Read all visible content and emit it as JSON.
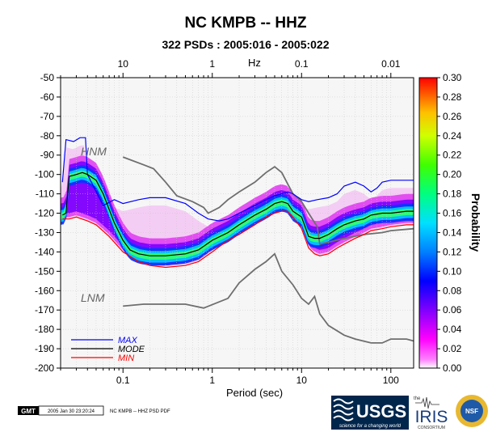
{
  "chart_data": {
    "type": "heatmap",
    "title": "NC KMPB -- HHZ",
    "subtitle": "322 PSDs : 2005:016 - 2005:022",
    "xlabel": "Period (sec)",
    "top_axis_unit": "Hz",
    "colorbar_label": "Probability",
    "x_scale": "log",
    "xlim": [
      0.02,
      180
    ],
    "ylim": [
      -200,
      -50
    ],
    "x_ticks": [
      {
        "v": 0.1,
        "label": "0.1"
      },
      {
        "v": 1,
        "label": "1"
      },
      {
        "v": 10,
        "label": "10"
      },
      {
        "v": 100,
        "label": "100"
      }
    ],
    "top_ticks": [
      {
        "v": 0.1,
        "label": "10"
      },
      {
        "v": 1,
        "label": "1"
      },
      {
        "v": 10,
        "label": "0.1"
      },
      {
        "v": 100,
        "label": "0.01"
      }
    ],
    "y_ticks": [
      -50,
      -60,
      -70,
      -80,
      -90,
      -100,
      -110,
      -120,
      -130,
      -140,
      -150,
      -160,
      -170,
      -180,
      -190,
      -200
    ],
    "colorbar": {
      "min": 0,
      "max": 0.3,
      "ticks": [
        "0.00",
        "0.02",
        "0.04",
        "0.06",
        "0.08",
        "0.10",
        "0.12",
        "0.14",
        "0.16",
        "0.18",
        "0.20",
        "0.22",
        "0.24",
        "0.26",
        "0.28",
        "0.30"
      ],
      "colors": [
        "#ffffff",
        "#ff00ff",
        "#8000ff",
        "#0000ff",
        "#00b0ff",
        "#00ffa0",
        "#00ff00",
        "#c0ff00",
        "#ffff00",
        "#ffa000",
        "#ff0000"
      ]
    },
    "series": [
      {
        "name": "MAX",
        "color": "#0000ff",
        "points": [
          [
            0.021,
            -104
          ],
          [
            0.023,
            -82
          ],
          [
            0.028,
            -83
          ],
          [
            0.033,
            -81
          ],
          [
            0.038,
            -81
          ],
          [
            0.04,
            -100
          ],
          [
            0.06,
            -116
          ],
          [
            0.08,
            -113
          ],
          [
            0.1,
            -115
          ],
          [
            0.15,
            -113
          ],
          [
            0.2,
            -112
          ],
          [
            0.3,
            -112
          ],
          [
            0.5,
            -115
          ],
          [
            0.7,
            -120
          ],
          [
            0.9,
            -123
          ],
          [
            1.2,
            -124
          ],
          [
            1.5,
            -123
          ],
          [
            2,
            -120
          ],
          [
            3,
            -116
          ],
          [
            4,
            -113
          ],
          [
            5,
            -111
          ],
          [
            6,
            -110
          ],
          [
            7,
            -109
          ],
          [
            8,
            -110
          ],
          [
            10,
            -113
          ],
          [
            12,
            -114
          ],
          [
            15,
            -113
          ],
          [
            20,
            -112
          ],
          [
            25,
            -110
          ],
          [
            30,
            -106
          ],
          [
            40,
            -104
          ],
          [
            50,
            -106
          ],
          [
            60,
            -109
          ],
          [
            70,
            -107
          ],
          [
            80,
            -104
          ],
          [
            100,
            -103
          ],
          [
            150,
            -103
          ],
          [
            180,
            -103
          ]
        ]
      },
      {
        "name": "MODE",
        "color": "#000000",
        "points": [
          [
            0.021,
            -121
          ],
          [
            0.023,
            -120
          ],
          [
            0.025,
            -101
          ],
          [
            0.03,
            -100
          ],
          [
            0.035,
            -99
          ],
          [
            0.04,
            -100
          ],
          [
            0.05,
            -103
          ],
          [
            0.06,
            -110
          ],
          [
            0.08,
            -125
          ],
          [
            0.1,
            -134
          ],
          [
            0.12,
            -139
          ],
          [
            0.15,
            -141
          ],
          [
            0.2,
            -142
          ],
          [
            0.3,
            -142
          ],
          [
            0.5,
            -141
          ],
          [
            0.7,
            -139
          ],
          [
            1,
            -134
          ],
          [
            1.5,
            -130
          ],
          [
            2,
            -126
          ],
          [
            3,
            -121
          ],
          [
            4,
            -118
          ],
          [
            5,
            -115
          ],
          [
            6,
            -114
          ],
          [
            7,
            -115
          ],
          [
            8,
            -119
          ],
          [
            10,
            -122
          ],
          [
            12,
            -132
          ],
          [
            14,
            -133
          ],
          [
            16,
            -133
          ],
          [
            20,
            -131
          ],
          [
            25,
            -128
          ],
          [
            30,
            -126
          ],
          [
            40,
            -124
          ],
          [
            50,
            -123
          ],
          [
            60,
            -121
          ],
          [
            80,
            -120
          ],
          [
            100,
            -120
          ],
          [
            150,
            -119
          ],
          [
            180,
            -119
          ]
        ]
      },
      {
        "name": "MIN",
        "color": "#ff0000",
        "points": [
          [
            0.021,
            -123
          ],
          [
            0.025,
            -123
          ],
          [
            0.03,
            -122
          ],
          [
            0.04,
            -124
          ],
          [
            0.05,
            -126
          ],
          [
            0.07,
            -132
          ],
          [
            0.1,
            -140
          ],
          [
            0.15,
            -145
          ],
          [
            0.2,
            -147
          ],
          [
            0.3,
            -148
          ],
          [
            0.5,
            -147
          ],
          [
            0.7,
            -145
          ],
          [
            1,
            -140
          ],
          [
            1.5,
            -134
          ],
          [
            2,
            -131
          ],
          [
            3,
            -126
          ],
          [
            4,
            -122
          ],
          [
            5,
            -120
          ],
          [
            6,
            -119
          ],
          [
            7,
            -119
          ],
          [
            8,
            -122
          ],
          [
            10,
            -128
          ],
          [
            12,
            -138
          ],
          [
            14,
            -141
          ],
          [
            16,
            -142
          ],
          [
            20,
            -141
          ],
          [
            25,
            -138
          ],
          [
            30,
            -136
          ],
          [
            40,
            -133
          ],
          [
            50,
            -131
          ],
          [
            60,
            -129
          ],
          [
            80,
            -128
          ],
          [
            100,
            -127
          ],
          [
            150,
            -126
          ],
          [
            180,
            -126
          ]
        ]
      }
    ],
    "noise_models": [
      {
        "name": "HNM",
        "label": "HNM",
        "points": [
          [
            0.1,
            -91
          ],
          [
            0.17,
            -95
          ],
          [
            0.22,
            -97
          ],
          [
            0.3,
            -104
          ],
          [
            0.4,
            -111
          ],
          [
            0.6,
            -114
          ],
          [
            0.8,
            -117
          ],
          [
            0.9,
            -120
          ],
          [
            1.2,
            -117
          ],
          [
            1.5,
            -113
          ],
          [
            2,
            -109
          ],
          [
            3,
            -104
          ],
          [
            4,
            -99
          ],
          [
            5,
            -96
          ],
          [
            6,
            -99
          ],
          [
            7,
            -105
          ],
          [
            8,
            -110
          ],
          [
            10,
            -114
          ],
          [
            12,
            -120
          ],
          [
            15,
            -127
          ],
          [
            16,
            -136
          ],
          [
            20,
            -135
          ],
          [
            30,
            -133
          ],
          [
            50,
            -131
          ],
          [
            80,
            -130
          ],
          [
            100,
            -129
          ],
          [
            180,
            -128
          ]
        ]
      },
      {
        "name": "LNM",
        "label": "LNM",
        "points": [
          [
            0.1,
            -168
          ],
          [
            0.17,
            -167
          ],
          [
            0.3,
            -167
          ],
          [
            0.5,
            -167
          ],
          [
            0.8,
            -169
          ],
          [
            1.5,
            -164
          ],
          [
            2,
            -156
          ],
          [
            3,
            -149
          ],
          [
            4,
            -145
          ],
          [
            5,
            -141
          ],
          [
            6,
            -150
          ],
          [
            8,
            -157
          ],
          [
            10,
            -164
          ],
          [
            12,
            -167
          ],
          [
            14,
            -163
          ],
          [
            16,
            -172
          ],
          [
            20,
            -178
          ],
          [
            30,
            -183
          ],
          [
            40,
            -185
          ],
          [
            60,
            -187
          ],
          [
            80,
            -187
          ],
          [
            100,
            -185
          ],
          [
            150,
            -185
          ],
          [
            180,
            -186
          ]
        ]
      }
    ],
    "legend": {
      "placement": "bottom-left",
      "entries": [
        {
          "label": "MAX",
          "color": "#0000ff"
        },
        {
          "label": "MODE",
          "color": "#000000"
        },
        {
          "label": "MIN",
          "color": "#ff0000"
        }
      ]
    }
  },
  "footer": {
    "gmt_logo": "GMT",
    "timestamp": "2005 Jan 30 23:20:24",
    "plot_caption": "NC KMPB -- HHZ PSD PDF",
    "logos": [
      {
        "name": "usgs",
        "text": "USGS",
        "tagline": "science for a changing world"
      },
      {
        "name": "iris",
        "text": "IRIS",
        "prefix": "the",
        "tagline": "CONSORTIUM"
      },
      {
        "name": "nsf",
        "text": "NSF"
      }
    ]
  }
}
